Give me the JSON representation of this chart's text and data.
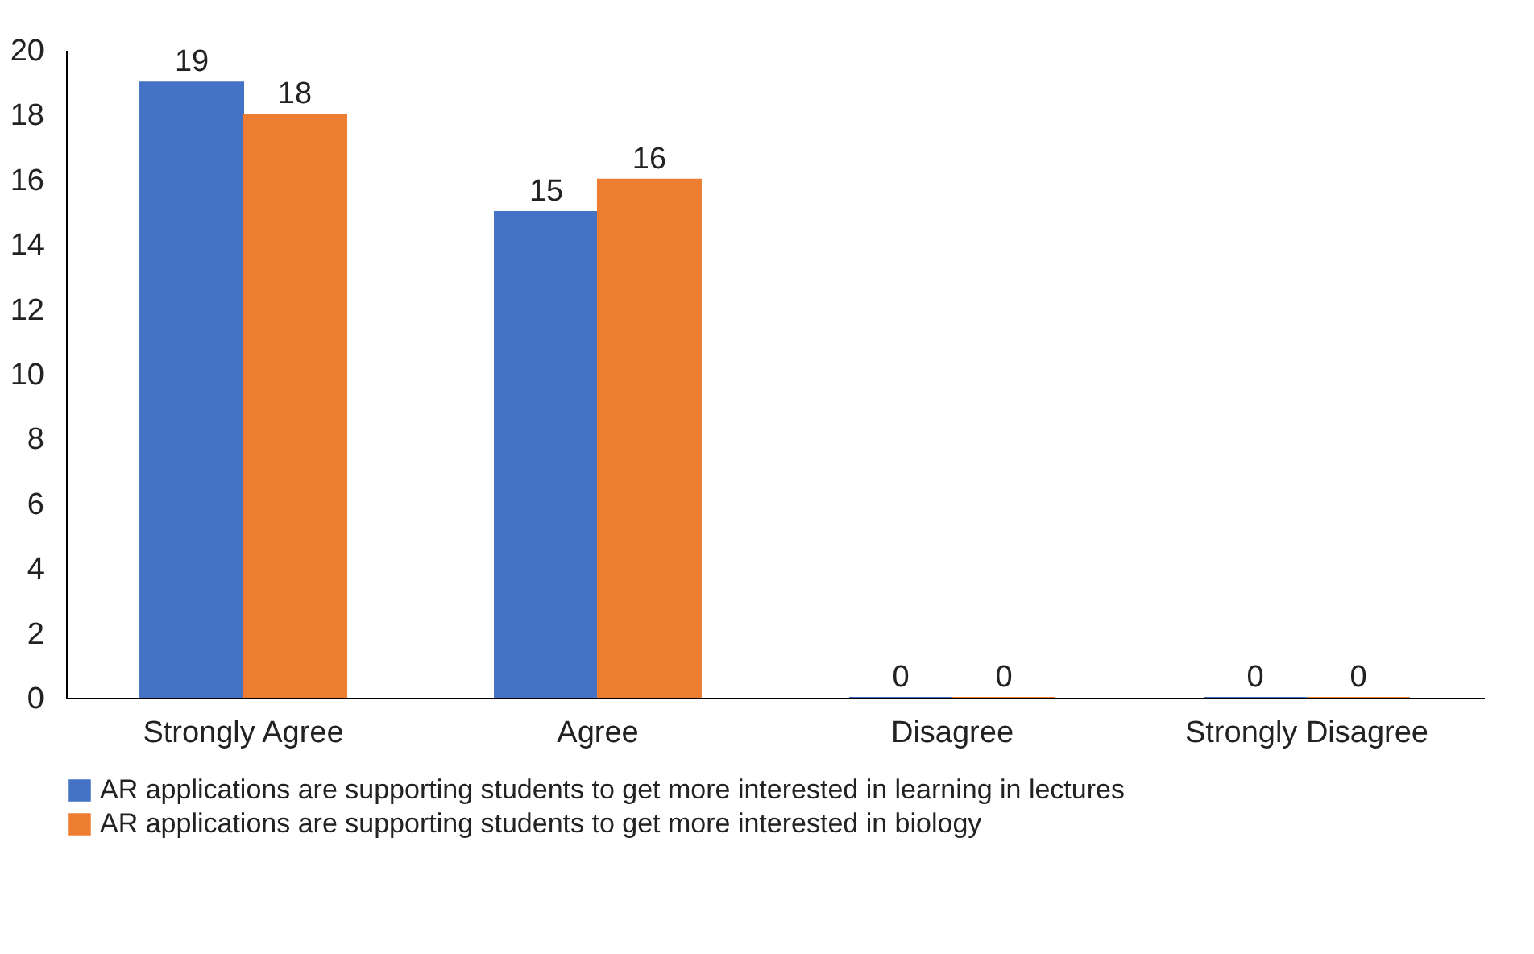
{
  "chart_data": {
    "type": "bar",
    "categories": [
      "Strongly Agree",
      "Agree",
      "Disagree",
      "Strongly Disagree"
    ],
    "series": [
      {
        "name": "AR applications are supporting students to get more interested in learning in lectures",
        "color": "#4472c4",
        "values": [
          19,
          15,
          0,
          0
        ]
      },
      {
        "name": "AR applications are supporting students to get more interested in biology",
        "color": "#ed7d31",
        "values": [
          18,
          16,
          0,
          0
        ]
      }
    ],
    "ylim": [
      0,
      20
    ],
    "yticks": [
      0,
      2,
      4,
      6,
      8,
      10,
      12,
      14,
      16,
      18,
      20
    ],
    "data_labels": true,
    "grid": false,
    "legend": "bottom"
  }
}
